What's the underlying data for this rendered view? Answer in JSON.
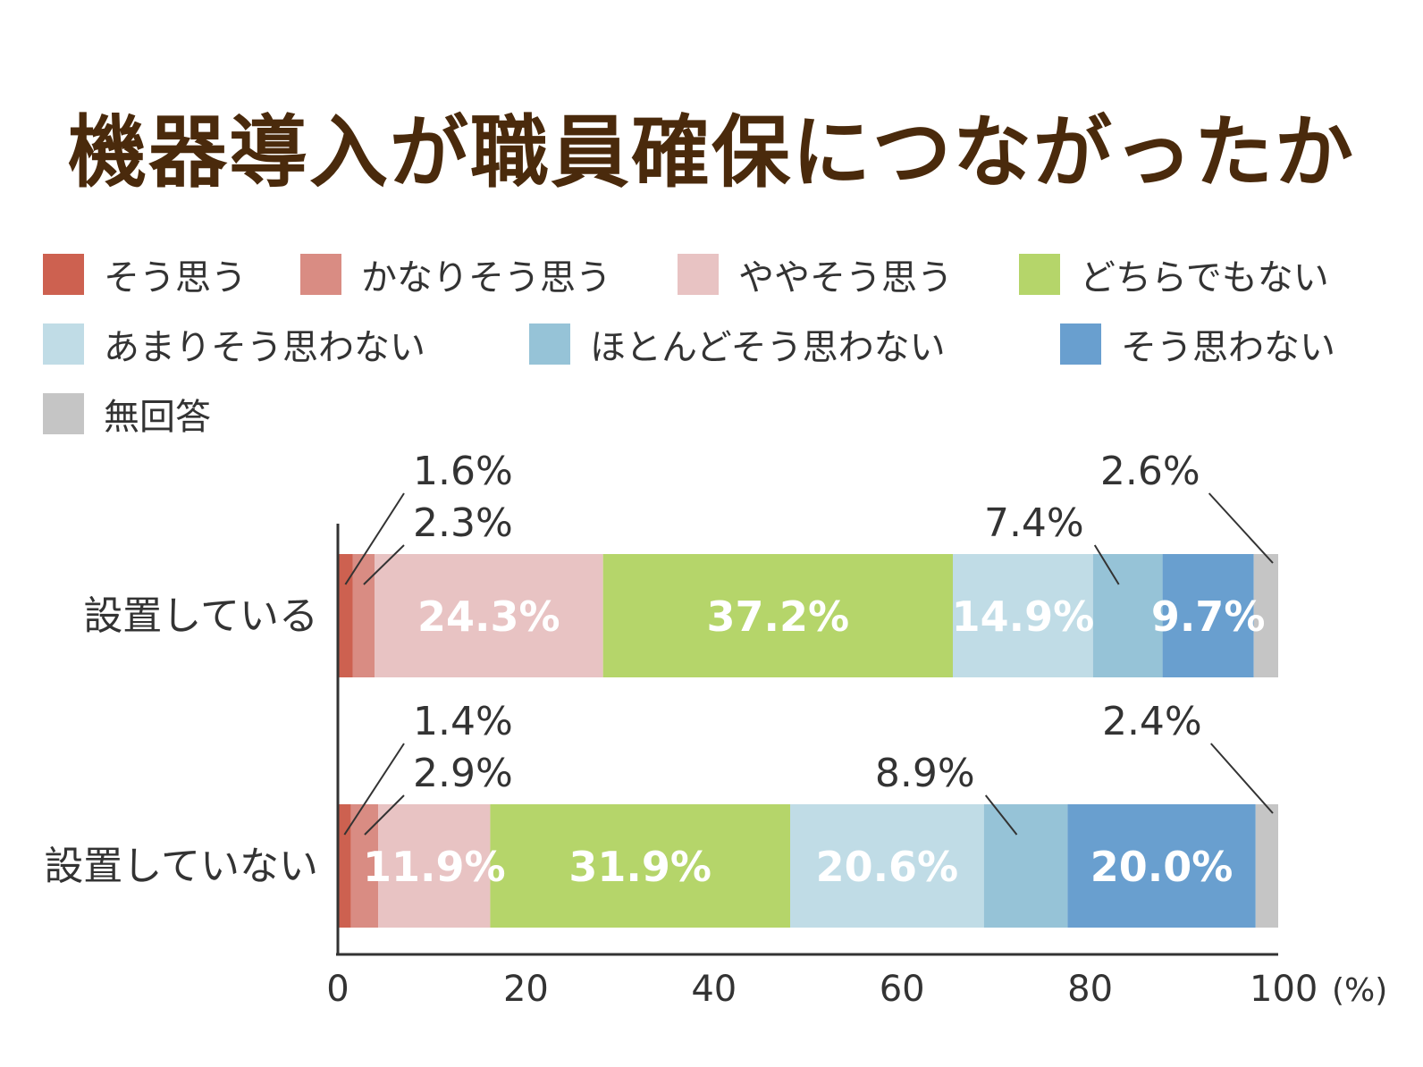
{
  "title": "機器導入が職員確保につながったか",
  "chart_data": {
    "type": "bar",
    "orientation": "horizontal",
    "stacked": true,
    "categories": [
      "設置している",
      "設置していない"
    ],
    "series": [
      {
        "name": "そう思う",
        "color": "#cd6150",
        "values": [
          1.6,
          1.4
        ],
        "labels": [
          "1.6%",
          "1.4%"
        ]
      },
      {
        "name": "かなりそう思う",
        "color": "#d98c83",
        "values": [
          2.3,
          2.9
        ],
        "labels": [
          "2.3%",
          "2.9%"
        ]
      },
      {
        "name": "ややそう思う",
        "color": "#e8c3c3",
        "values": [
          24.3,
          11.9
        ],
        "labels": [
          "24.3%",
          "11.9%"
        ]
      },
      {
        "name": "どちらでもない",
        "color": "#b5d56a",
        "values": [
          37.2,
          31.9
        ],
        "labels": [
          "37.2%",
          "31.9%"
        ]
      },
      {
        "name": "あまりそう思わない",
        "color": "#c0dce6",
        "values": [
          14.9,
          20.6
        ],
        "labels": [
          "14.9%",
          "20.6%"
        ]
      },
      {
        "name": "ほとんどそう思わない",
        "color": "#96c3d7",
        "values": [
          7.4,
          8.9
        ],
        "labels": [
          "7.4%",
          "8.9%"
        ]
      },
      {
        "name": "そう思わない",
        "color": "#699fcf",
        "values": [
          9.7,
          20.0
        ],
        "labels": [
          "9.7%",
          "20.0%"
        ]
      },
      {
        "name": "無回答",
        "color": "#c5c5c5",
        "values": [
          2.6,
          2.4
        ],
        "labels": [
          "2.6%",
          "2.4%"
        ]
      }
    ],
    "xlim": [
      0,
      100
    ],
    "xticks": [
      "0",
      "20",
      "40",
      "60",
      "80",
      "100"
    ],
    "xunit": "(%)",
    "grid": false,
    "legend_position": "top"
  }
}
